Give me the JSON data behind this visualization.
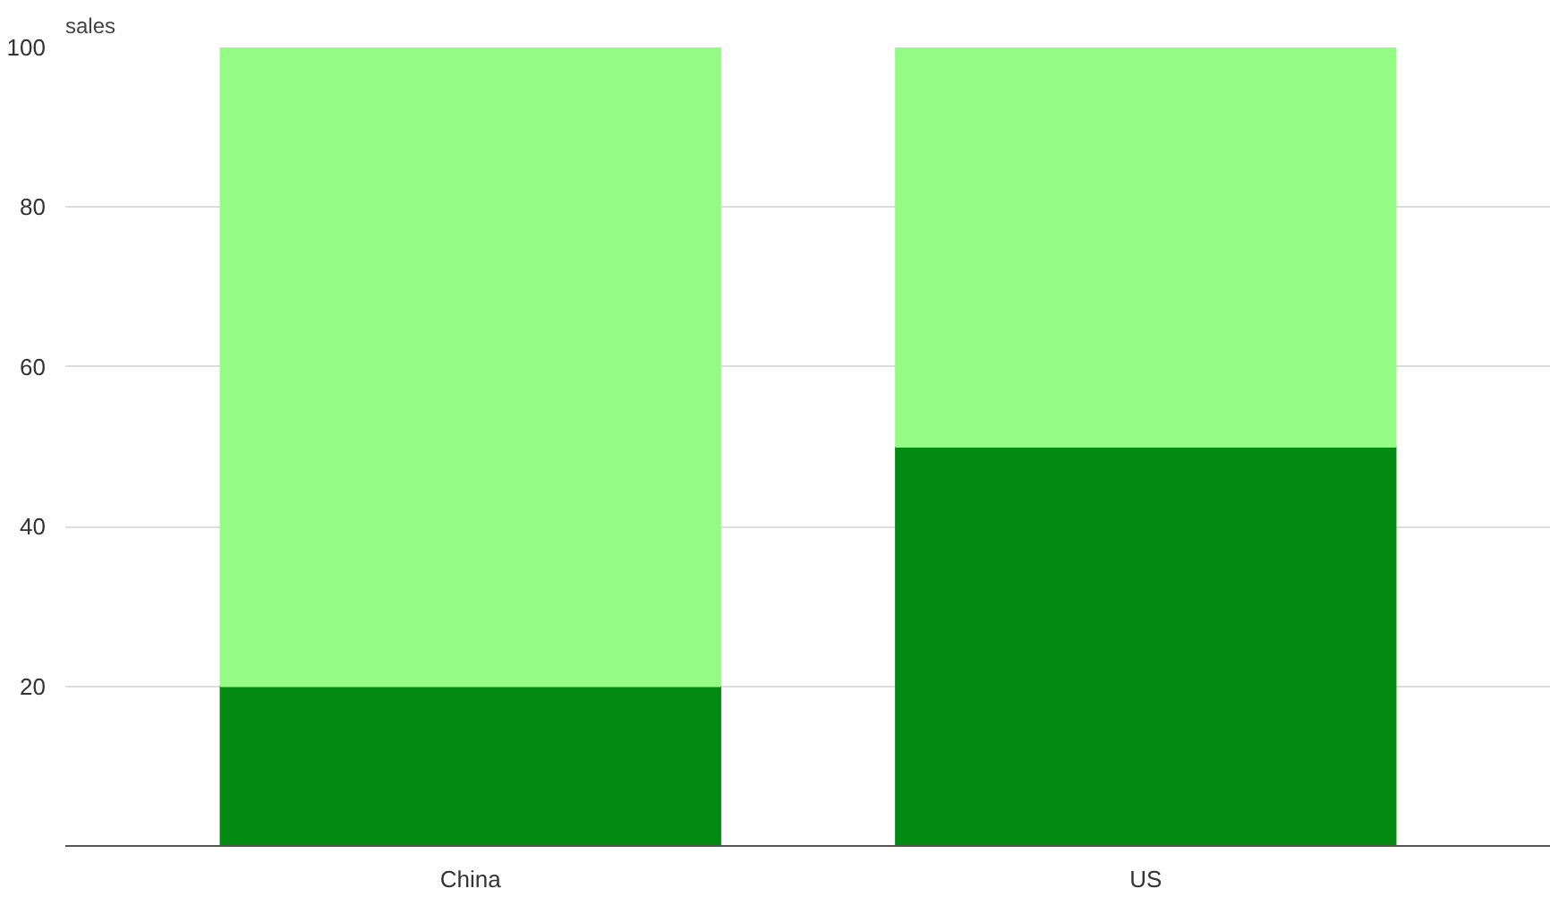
{
  "chart_data": {
    "type": "bar",
    "stacked": true,
    "ylabel": "sales",
    "categories": [
      "China",
      "US"
    ],
    "series": [
      {
        "color": "#038a12",
        "values": [
          20,
          50
        ]
      },
      {
        "color": "#94fc84",
        "values": [
          80,
          50
        ]
      }
    ],
    "ylim": [
      0,
      100
    ],
    "yticks": [
      20,
      40,
      60,
      80,
      100
    ],
    "grid": "y"
  }
}
